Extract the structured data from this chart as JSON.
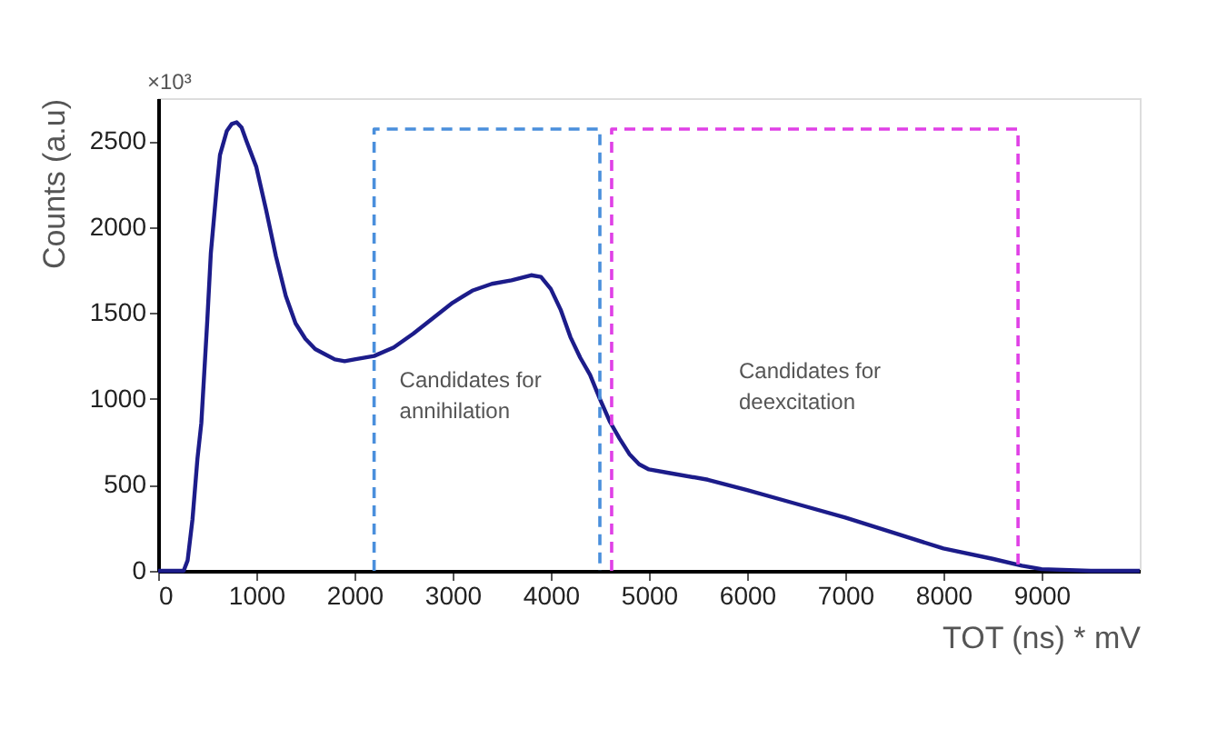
{
  "chart_data": {
    "type": "line",
    "xlabel": "TOT (ns) * mV",
    "ylabel": "Counts (a.u)",
    "xlim": [
      0,
      10000
    ],
    "xticks": [
      0,
      1000,
      2000,
      3000,
      4000,
      5000,
      6000,
      7000,
      8000,
      9000
    ],
    "ylim": [
      0,
      2750
    ],
    "yticks": [
      0,
      500,
      1000,
      1500,
      2000,
      2500
    ],
    "series": [
      {
        "color": "#1c1c8a",
        "line_style": "solid",
        "x": [
          0,
          200,
          260,
          300,
          350,
          400,
          440,
          500,
          537,
          600,
          630,
          700,
          750,
          800,
          850,
          900,
          1000,
          1100,
          1200,
          1300,
          1400,
          1500,
          1600,
          1700,
          1800,
          1900,
          2000,
          2200,
          2400,
          2600,
          2800,
          3000,
          3200,
          3400,
          3600,
          3800,
          3900,
          4000,
          4100,
          4200,
          4300,
          4400,
          4500,
          4600,
          4700,
          4800,
          4900,
          5000,
          5200,
          5600,
          6000,
          6500,
          7000,
          7500,
          8000,
          8500,
          8800,
          9000,
          9500,
          10000
        ],
        "values": [
          0,
          0,
          0,
          60,
          300,
          650,
          860,
          1450,
          1850,
          2250,
          2420,
          2560,
          2600,
          2610,
          2580,
          2500,
          2350,
          2100,
          1830,
          1600,
          1440,
          1350,
          1290,
          1260,
          1230,
          1220,
          1230,
          1250,
          1300,
          1380,
          1470,
          1560,
          1630,
          1670,
          1690,
          1720,
          1710,
          1640,
          1520,
          1360,
          1240,
          1140,
          1000,
          870,
          770,
          680,
          620,
          590,
          570,
          530,
          470,
          390,
          310,
          220,
          130,
          70,
          30,
          10,
          0,
          0
        ]
      },
      {
        "color": "#4a8fdc",
        "line_style": "dashed",
        "x": [
          2200,
          2200,
          4500,
          4500
        ],
        "values": [
          0,
          2570,
          2570,
          0
        ]
      },
      {
        "color": "#e040e6",
        "line_style": "dashed",
        "x": [
          4620,
          4620,
          8760,
          8760
        ],
        "values": [
          0,
          2570,
          2570,
          0
        ]
      }
    ],
    "annotations": [
      "×10³",
      "Candidates for\nannihilation",
      "Candidates for\ndeexcitation"
    ]
  }
}
